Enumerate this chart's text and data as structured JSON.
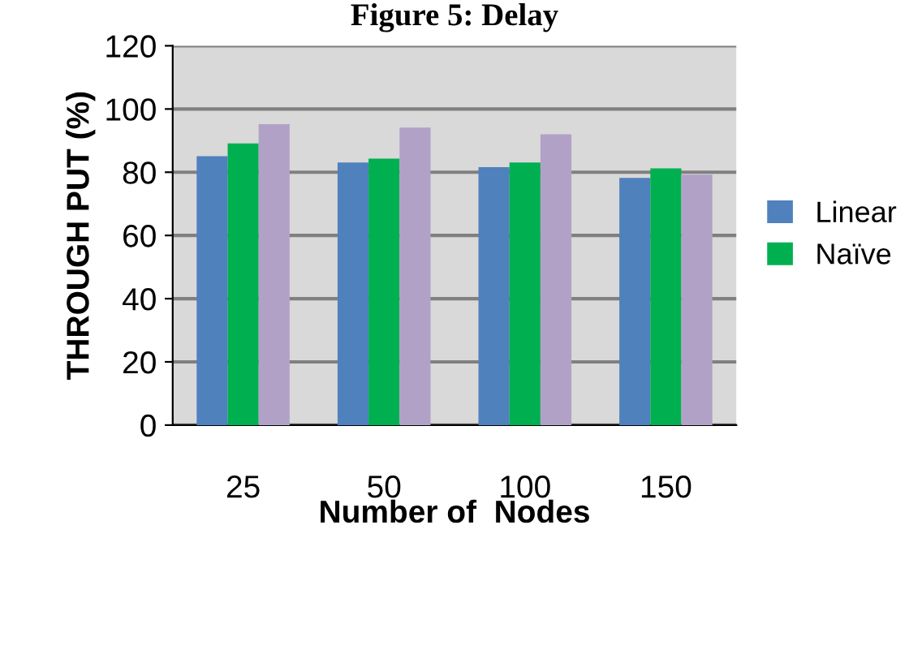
{
  "chart_data": {
    "type": "bar",
    "title": "Figure 5: Delay",
    "xlabel": "Number of  Nodes",
    "ylabel": "THROUGH PUT (%)",
    "categories": [
      "25",
      "50",
      "100",
      "150"
    ],
    "series": [
      {
        "name": "Linear",
        "color": "#4f81bd",
        "values": [
          85.1,
          83.1,
          81.6,
          78.2
        ]
      },
      {
        "name": "Naïve",
        "color": "#00b050",
        "values": [
          89.1,
          84.3,
          83.1,
          81.2
        ]
      },
      {
        "color": "#b2a1c7",
        "values": [
          95.2,
          94.1,
          92.0,
          79.2
        ]
      }
    ],
    "ylim": [
      0,
      120
    ],
    "yticks": [
      0,
      20,
      40,
      60,
      80,
      100,
      120
    ],
    "grid": "y",
    "legend": "right"
  }
}
